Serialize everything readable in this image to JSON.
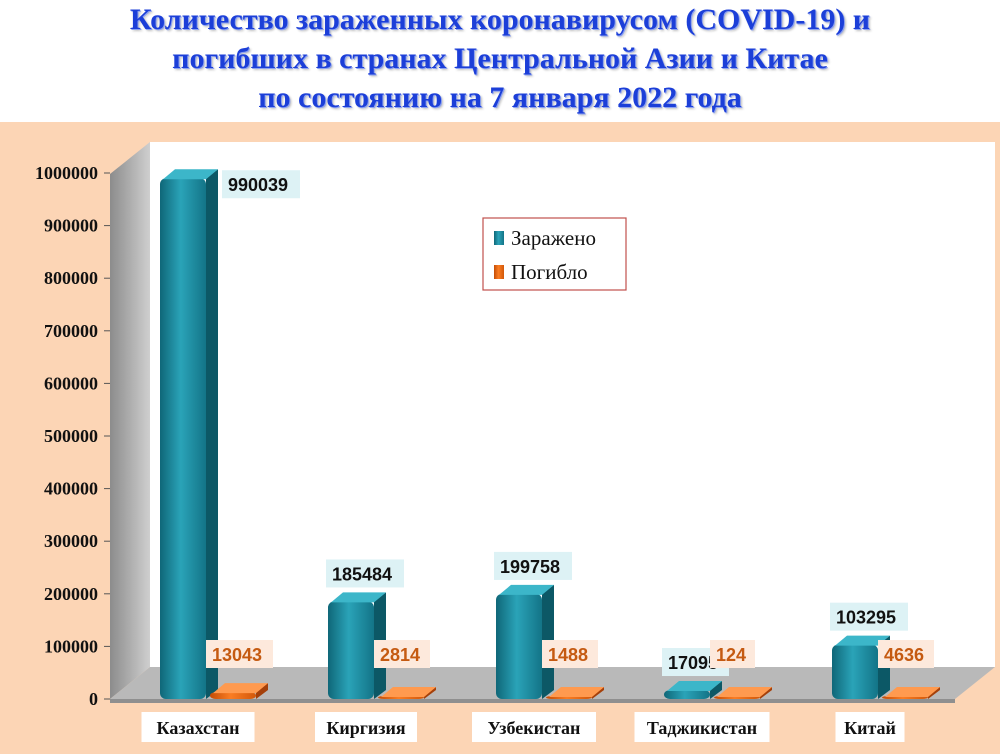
{
  "title": {
    "line1": "Количество зараженных коронавирусом (COVID-19) и",
    "line2": "погибших в странах Центральной Азии и Китае",
    "line3": "по состоянию на 7 января 2022 года"
  },
  "colors": {
    "infected": "#1b8a9e",
    "dead": "#e8640c",
    "background": "#fcd5b5",
    "plot": "#ffffff",
    "title": "#1c3fd8",
    "infected_label_bg": "#ddf2f5",
    "dead_label_bg": "#fde9dc"
  },
  "chart_data": {
    "type": "bar",
    "categories": [
      "Казахстан",
      "Киргизия",
      "Узбекистан",
      "Таджикистан",
      "Китай"
    ],
    "series": [
      {
        "name": "Заражено",
        "values": [
          990039,
          185484,
          199758,
          17095,
          103295
        ]
      },
      {
        "name": "Погибло",
        "values": [
          13043,
          2814,
          1488,
          124,
          4636
        ]
      }
    ],
    "yticks": [
      "0",
      "100000",
      "200000",
      "300000",
      "400000",
      "500000",
      "600000",
      "700000",
      "800000",
      "900000",
      "1000000"
    ],
    "ylim": [
      0,
      1000000
    ],
    "legend": "upper-center",
    "grid": false
  }
}
